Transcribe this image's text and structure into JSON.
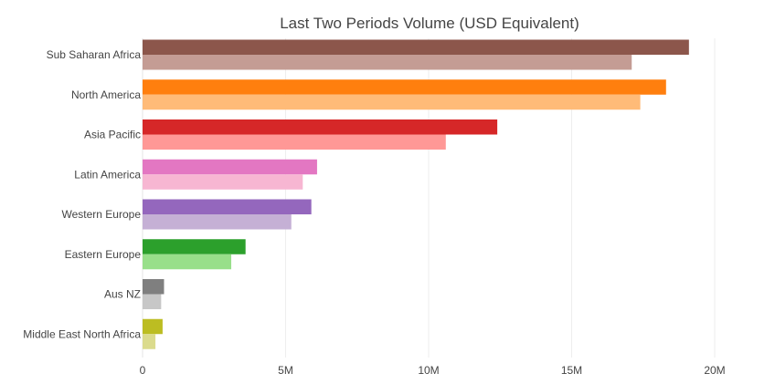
{
  "chart_data": {
    "type": "bar",
    "orientation": "horizontal",
    "title": "Last Two Periods Volume (USD Equivalent)",
    "xlabel": "",
    "ylabel": "",
    "xlim": [
      0,
      20000000
    ],
    "x_ticks": [
      0,
      5000000,
      10000000,
      15000000,
      20000000
    ],
    "x_tick_labels": [
      "0",
      "5M",
      "10M",
      "15M",
      "20M"
    ],
    "grid": true,
    "legend": "none",
    "categories": [
      "Sub Saharan Africa",
      "North America",
      "Asia Pacific",
      "Latin America",
      "Western Europe",
      "Eastern Europe",
      "Aus NZ",
      "Middle East North Africa"
    ],
    "series": [
      {
        "values": [
          19100000,
          18300000,
          12400000,
          6100000,
          5900000,
          3600000,
          750000,
          700000
        ]
      },
      {
        "values": [
          17100000,
          17400000,
          10600000,
          5600000,
          5200000,
          3100000,
          650000,
          450000
        ]
      }
    ],
    "colors": {
      "primary": [
        "#8c564b",
        "#ff7f0e",
        "#d62728",
        "#e377c2",
        "#9467bd",
        "#2ca02c",
        "#7f7f7f",
        "#bcbd22"
      ],
      "secondary": [
        "#c49c94",
        "#ffbb78",
        "#ff9896",
        "#f7b6d2",
        "#c5b0d5",
        "#98df8a",
        "#c7c7c7",
        "#dbdb8d"
      ]
    }
  }
}
